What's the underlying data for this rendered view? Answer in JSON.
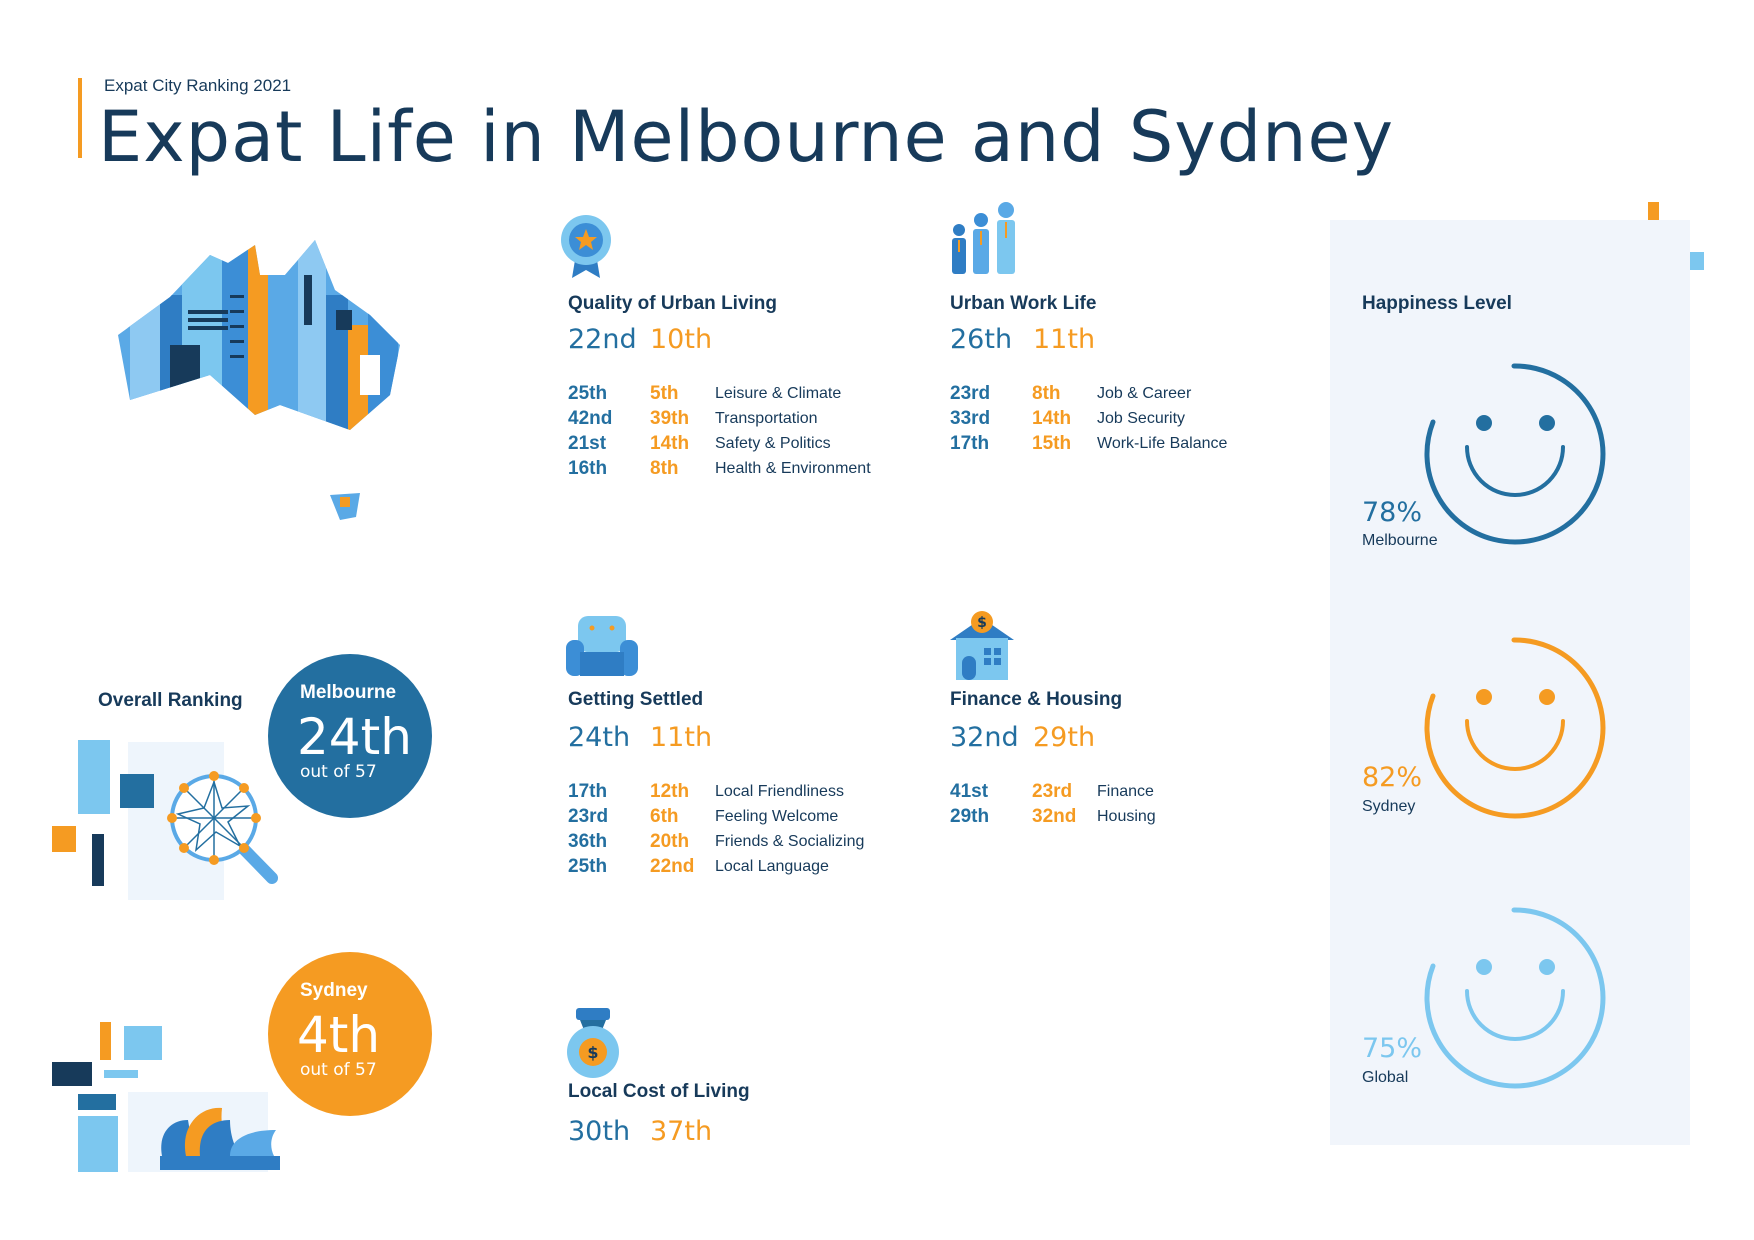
{
  "header": {
    "subtitle": "Expat City Ranking 2021",
    "title": "Expat Life in Melbourne and Sydney"
  },
  "colors": {
    "melbourne": "#236fa0",
    "sydney": "#f59b22",
    "global": "#7cc7ef",
    "dark": "#173a5a"
  },
  "overall": {
    "label": "Overall Ranking",
    "melbourne": {
      "city": "Melbourne",
      "rank": "24th",
      "out_of": "out of 57"
    },
    "sydney": {
      "city": "Sydney",
      "rank": "4th",
      "out_of": "out of 57"
    }
  },
  "categories": {
    "quality": {
      "icon": "award-medal-icon",
      "title": "Quality of Urban Living",
      "melbourne": "22nd",
      "sydney": "10th",
      "rows": [
        {
          "melbourne": "25th",
          "sydney": "5th",
          "label": "Leisure & Climate"
        },
        {
          "melbourne": "42nd",
          "sydney": "39th",
          "label": "Transportation"
        },
        {
          "melbourne": "21st",
          "sydney": "14th",
          "label": "Safety & Politics"
        },
        {
          "melbourne": "16th",
          "sydney": "8th",
          "label": "Health & Environment"
        }
      ]
    },
    "work": {
      "icon": "people-icon",
      "title": "Urban Work Life",
      "melbourne": "26th",
      "sydney": "11th",
      "rows": [
        {
          "melbourne": "23rd",
          "sydney": "8th",
          "label": "Job & Career"
        },
        {
          "melbourne": "33rd",
          "sydney": "14th",
          "label": "Job Security"
        },
        {
          "melbourne": "17th",
          "sydney": "15th",
          "label": "Work-Life Balance"
        }
      ]
    },
    "settled": {
      "icon": "armchair-icon",
      "title": "Getting Settled",
      "melbourne": "24th",
      "sydney": "11th",
      "rows": [
        {
          "melbourne": "17th",
          "sydney": "12th",
          "label": "Local Friendliness"
        },
        {
          "melbourne": "23rd",
          "sydney": "6th",
          "label": "Feeling Welcome"
        },
        {
          "melbourne": "36th",
          "sydney": "20th",
          "label": "Friends & Socializing"
        },
        {
          "melbourne": "25th",
          "sydney": "22nd",
          "label": "Local Language"
        }
      ]
    },
    "finance": {
      "icon": "house-money-icon",
      "title": "Finance & Housing",
      "melbourne": "32nd",
      "sydney": "29th",
      "rows": [
        {
          "melbourne": "41st",
          "sydney": "23rd",
          "label": "Finance"
        },
        {
          "melbourne": "29th",
          "sydney": "32nd",
          "label": "Housing"
        }
      ]
    },
    "cost": {
      "icon": "money-bag-icon",
      "title": "Local Cost of Living",
      "melbourne": "30th",
      "sydney": "37th"
    }
  },
  "happiness": {
    "title": "Happiness Level",
    "items": [
      {
        "pct": "78%",
        "label": "Melbourne"
      },
      {
        "pct": "82%",
        "label": "Sydney"
      },
      {
        "pct": "75%",
        "label": "Global"
      }
    ]
  }
}
